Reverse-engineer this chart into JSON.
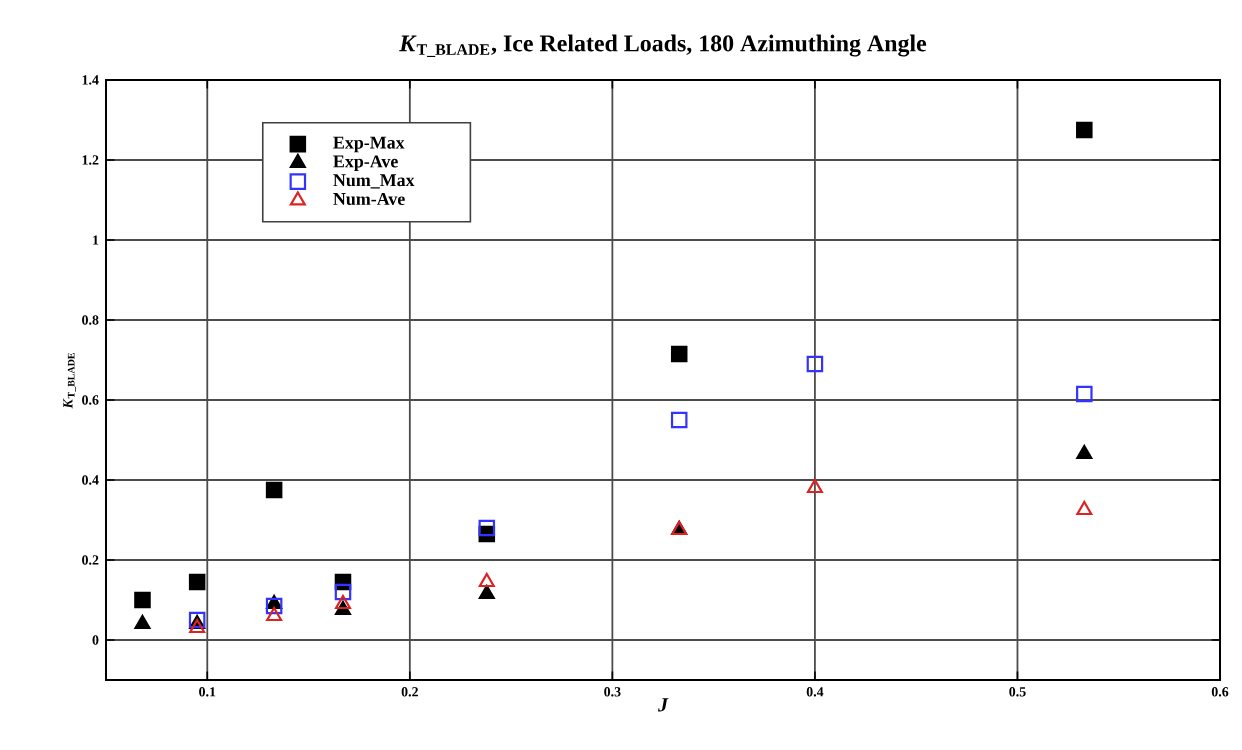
{
  "chart_data": {
    "type": "scatter",
    "title": "*K*$_{T_BLADE}$, Ice Related Loads, 180 Azimuthing Angle",
    "xlabel": "*J*",
    "ylabel": "*K*$_{T_BLADE}$",
    "xlim": [
      0.05,
      0.6
    ],
    "ylim": [
      -0.1,
      1.4
    ],
    "xticks": [
      0.1,
      0.2,
      0.3,
      0.4,
      0.5,
      0.6
    ],
    "yticks": [
      0,
      0.2,
      0.4,
      0.6,
      0.8,
      1,
      1.2,
      1.4
    ],
    "grid": true,
    "legend": "top left",
    "series": [
      {
        "name": "Exp-Max",
        "color": "#000000",
        "marker": "square",
        "x": [
          0.068,
          0.095,
          0.133,
          0.167,
          0.238,
          0.333,
          0.533
        ],
        "values": [
          0.1,
          0.145,
          0.375,
          0.145,
          0.265,
          0.715,
          1.275
        ]
      },
      {
        "name": "Exp-Ave",
        "color": "#000000",
        "marker": "triangle",
        "x": [
          0.068,
          0.095,
          0.133,
          0.167,
          0.238,
          0.333,
          0.533
        ],
        "values": [
          0.04,
          0.04,
          0.09,
          0.075,
          0.115,
          0.275,
          0.465
        ]
      },
      {
        "name": "Num_Max",
        "color": "#3333ff",
        "marker": "square",
        "x": [
          0.095,
          0.133,
          0.167,
          0.238,
          0.333,
          0.4,
          0.533
        ],
        "values": [
          0.05,
          0.085,
          0.12,
          0.28,
          0.55,
          0.69,
          0.615
        ]
      },
      {
        "name": "Num-Ave",
        "color": "#dd2222",
        "marker": "triangle",
        "x": [
          0.095,
          0.133,
          0.167,
          0.238,
          0.333,
          0.4,
          0.533
        ],
        "values": [
          0.03,
          0.06,
          0.09,
          0.145,
          0.275,
          0.38,
          0.325
        ]
      }
    ]
  }
}
